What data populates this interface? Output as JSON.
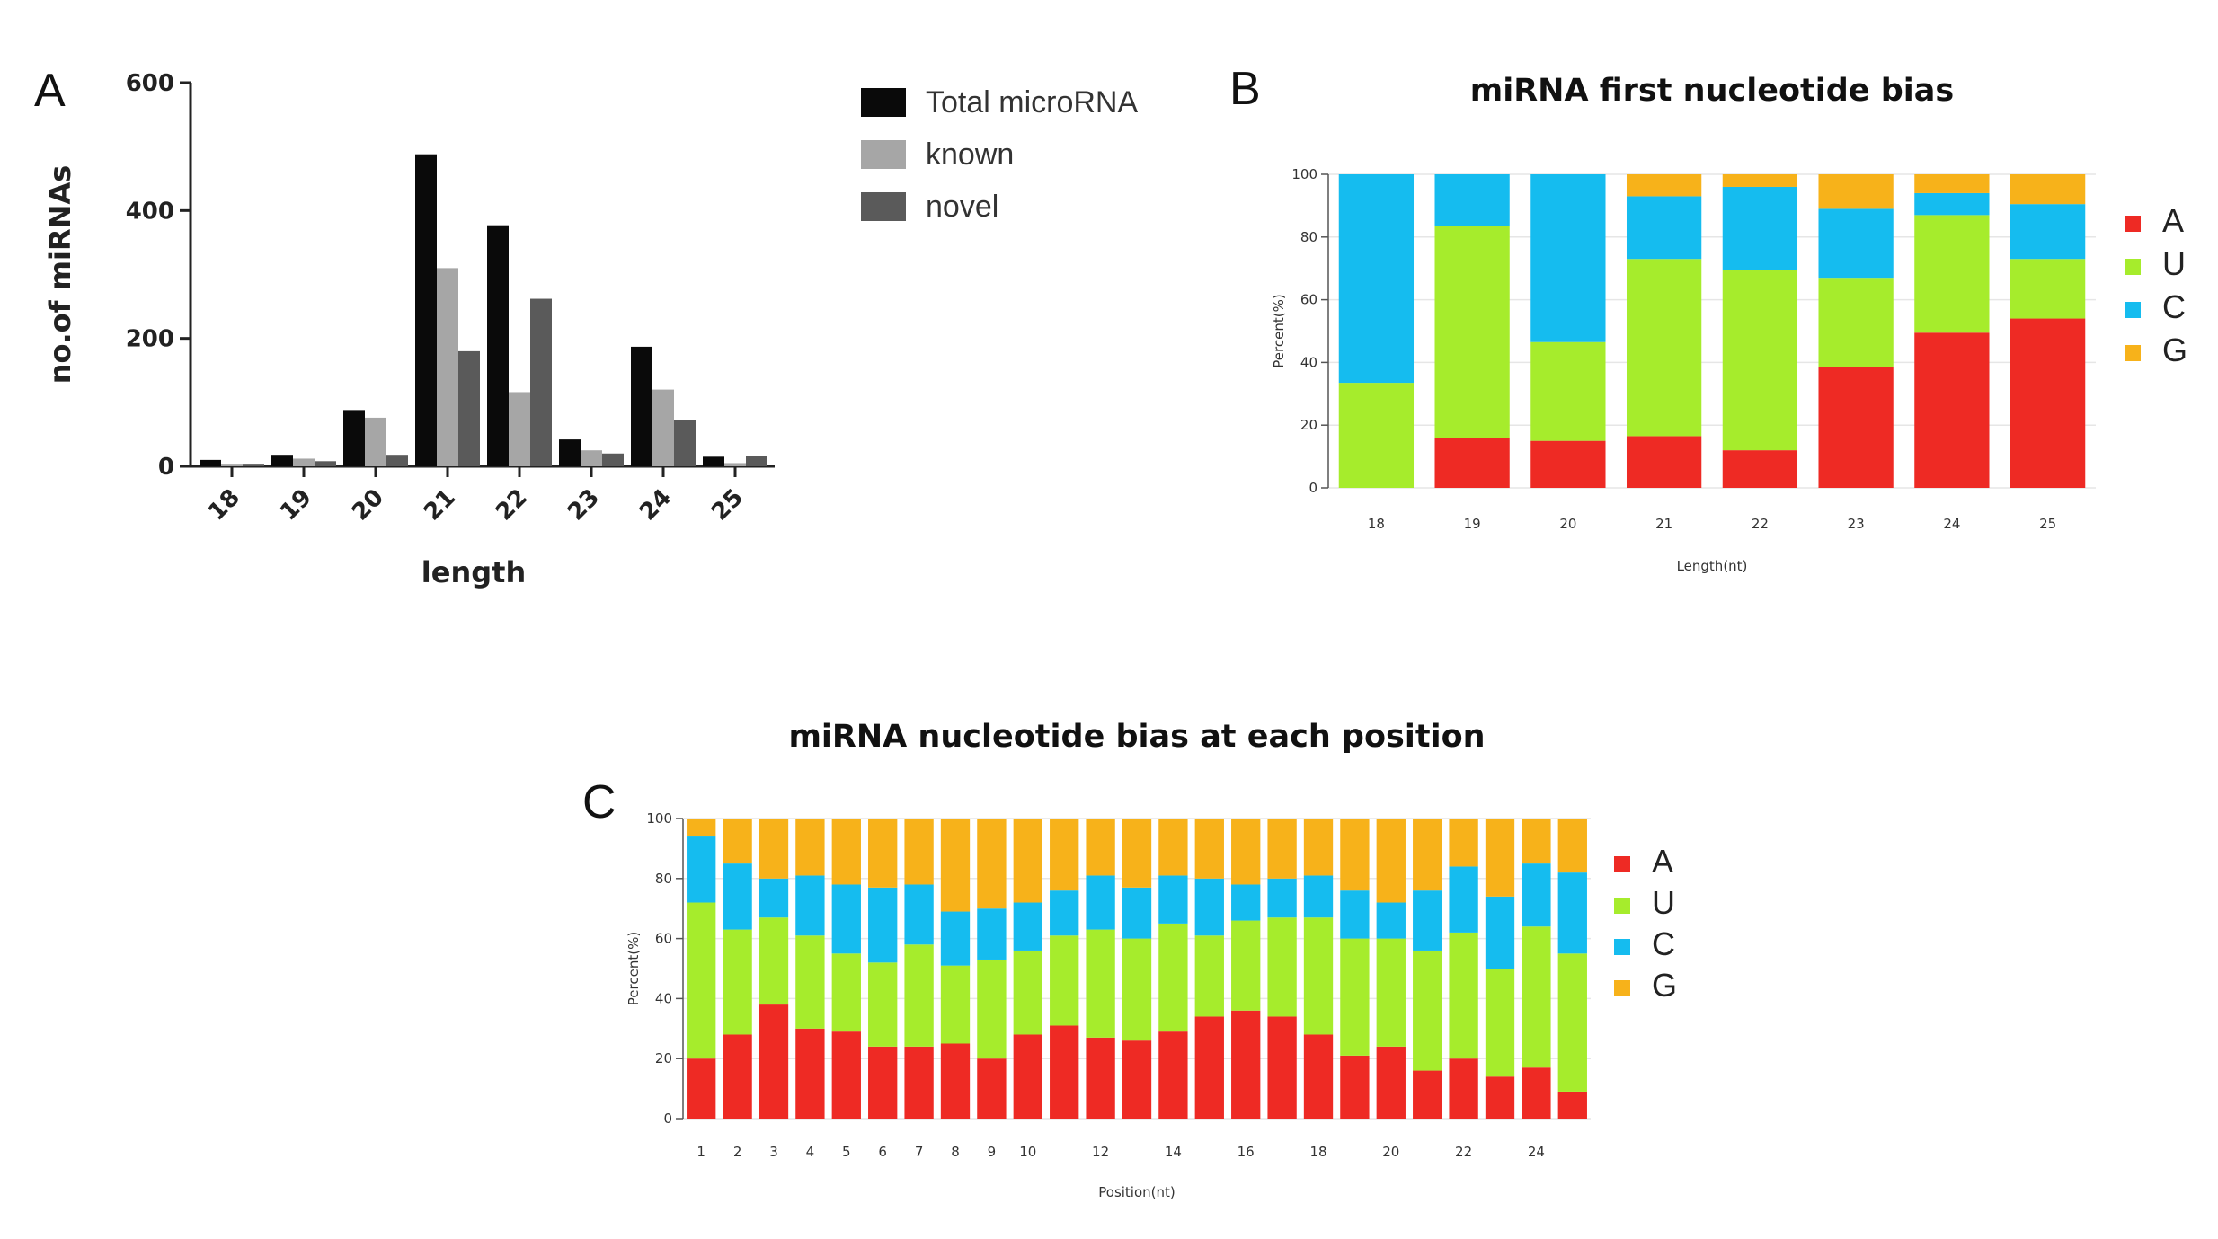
{
  "panel_labels": {
    "a": "A",
    "b": "B",
    "c": "C"
  },
  "colors": {
    "total": "#0a0a0a",
    "known": "#a6a6a6",
    "novel": "#5a5a5a",
    "A": "#ee2a24",
    "U": "#a6ec2c",
    "C": "#15bcef",
    "G": "#f7b21a",
    "grid": "#e6e6e6",
    "axis": "#222222"
  },
  "chart_data": [
    {
      "id": "a",
      "type": "bar",
      "title": "",
      "xlabel": "length",
      "ylabel": "no.of miRNAs",
      "ylim": [
        0,
        600
      ],
      "yticks": [
        "0",
        "200",
        "400",
        "600"
      ],
      "categories": [
        "18",
        "19",
        "20",
        "21",
        "22",
        "23",
        "24",
        "25"
      ],
      "legend_position": "top-right",
      "series": [
        {
          "name": "Total microRNA",
          "color_key": "total",
          "values": [
            10,
            18,
            88,
            488,
            377,
            42,
            187,
            15
          ]
        },
        {
          "name": "known",
          "color_key": "known",
          "values": [
            4,
            12,
            76,
            310,
            116,
            25,
            120,
            5
          ]
        },
        {
          "name": "novel",
          "color_key": "novel",
          "values": [
            4,
            8,
            18,
            180,
            262,
            20,
            72,
            16
          ]
        }
      ]
    },
    {
      "id": "b",
      "type": "bar",
      "stacked": true,
      "title": "miRNA first nucleotide bias",
      "xlabel": "Length(nt)",
      "ylabel": "Percent(%)",
      "ylim": [
        0,
        100
      ],
      "yticks": [
        "0",
        "20",
        "40",
        "60",
        "80",
        "100"
      ],
      "categories": [
        "18",
        "19",
        "20",
        "21",
        "22",
        "23",
        "24",
        "25"
      ],
      "legend_position": "right",
      "series": [
        {
          "name": "A",
          "color_key": "A",
          "values": [
            0,
            16,
            15,
            16.5,
            12,
            38.5,
            49.5,
            54
          ]
        },
        {
          "name": "U",
          "color_key": "U",
          "values": [
            33.5,
            67.5,
            31.5,
            56.5,
            57.5,
            28.5,
            37.5,
            19
          ]
        },
        {
          "name": "C",
          "color_key": "C",
          "values": [
            66.5,
            16.5,
            53.5,
            20,
            26.5,
            22,
            7,
            17.5
          ]
        },
        {
          "name": "G",
          "color_key": "G",
          "values": [
            0,
            0,
            0,
            7,
            4,
            11,
            6,
            9.5
          ]
        }
      ]
    },
    {
      "id": "c",
      "type": "bar",
      "stacked": true,
      "title": "miRNA nucleotide bias at each position",
      "xlabel": "Position(nt)",
      "ylabel": "Percent(%)",
      "ylim": [
        0,
        100
      ],
      "yticks": [
        "0",
        "20",
        "40",
        "60",
        "80",
        "100"
      ],
      "categories": [
        "1",
        "2",
        "3",
        "4",
        "5",
        "6",
        "7",
        "8",
        "9",
        "10",
        "11",
        "12",
        "13",
        "14",
        "15",
        "16",
        "17",
        "18",
        "19",
        "20",
        "21",
        "22",
        "23",
        "24",
        "25"
      ],
      "tick_labels": [
        "1",
        "2",
        "3",
        "4",
        "5",
        "6",
        "7",
        "8",
        "9",
        "10",
        "",
        "12",
        "",
        "14",
        "",
        "16",
        "",
        "18",
        "",
        "20",
        "",
        "22",
        "",
        "24",
        ""
      ],
      "legend_position": "right",
      "series": [
        {
          "name": "A",
          "color_key": "A",
          "values": [
            20,
            28,
            38,
            30,
            29,
            24,
            24,
            25,
            20,
            28,
            31,
            27,
            26,
            29,
            34,
            36,
            34,
            28,
            21,
            24,
            16,
            20,
            14,
            17,
            9
          ]
        },
        {
          "name": "U",
          "color_key": "U",
          "values": [
            52,
            35,
            29,
            31,
            26,
            28,
            34,
            26,
            33,
            28,
            30,
            36,
            34,
            36,
            27,
            30,
            33,
            39,
            39,
            36,
            40,
            42,
            36,
            47,
            46
          ]
        },
        {
          "name": "C",
          "color_key": "C",
          "values": [
            22,
            22,
            13,
            20,
            23,
            25,
            20,
            18,
            17,
            16,
            15,
            18,
            17,
            16,
            19,
            12,
            13,
            14,
            16,
            12,
            20,
            22,
            24,
            21,
            27
          ]
        },
        {
          "name": "G",
          "color_key": "G",
          "values": [
            6,
            15,
            20,
            19,
            22,
            23,
            22,
            31,
            30,
            28,
            24,
            19,
            23,
            19,
            20,
            22,
            20,
            19,
            24,
            28,
            24,
            16,
            26,
            15,
            18
          ]
        }
      ]
    }
  ]
}
